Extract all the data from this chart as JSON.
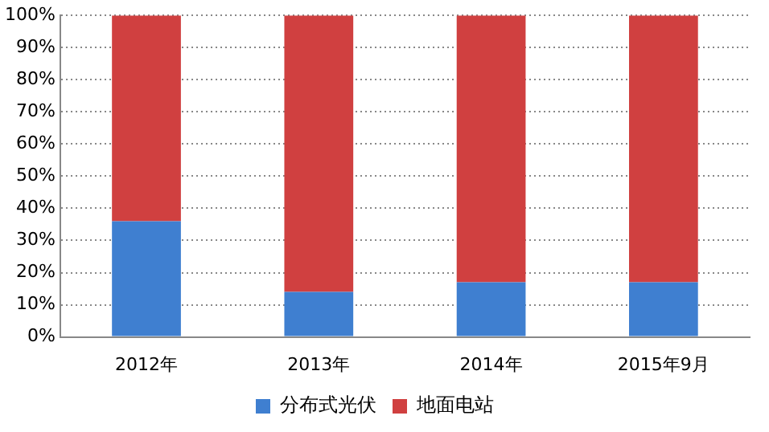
{
  "chart_data": {
    "type": "bar",
    "stacked": true,
    "categories": [
      "2012年",
      "2013年",
      "2014年",
      "2015年9月"
    ],
    "series": [
      {
        "name": "分布式光伏",
        "color": "#3f7fd0",
        "values": [
          36,
          14,
          17,
          17
        ]
      },
      {
        "name": "地面电站",
        "color": "#d04040",
        "values": [
          64,
          86,
          83,
          83
        ]
      }
    ],
    "ylim": [
      0,
      100
    ],
    "yticks": [
      {
        "value": 0,
        "label": "0%"
      },
      {
        "value": 10,
        "label": "10%"
      },
      {
        "value": 20,
        "label": "20%"
      },
      {
        "value": 30,
        "label": "30%"
      },
      {
        "value": 40,
        "label": "40%"
      },
      {
        "value": 50,
        "label": "50%"
      },
      {
        "value": 60,
        "label": "60%"
      },
      {
        "value": 70,
        "label": "70%"
      },
      {
        "value": 80,
        "label": "80%"
      },
      {
        "value": 90,
        "label": "90%"
      },
      {
        "value": 100,
        "label": "100%"
      }
    ],
    "grid": "y",
    "legend": "bottom"
  }
}
